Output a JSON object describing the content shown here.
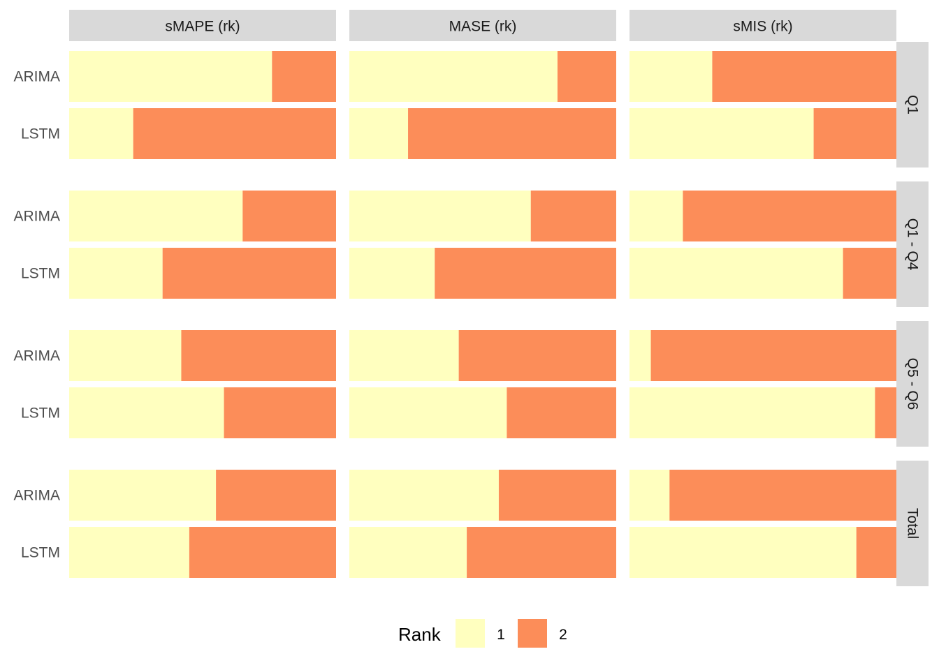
{
  "chart_data": {
    "type": "bar",
    "orientation": "horizontal",
    "stacked": true,
    "normalized": true,
    "title": "",
    "xlabel": "",
    "ylabel": "",
    "xlim": [
      0,
      1
    ],
    "grid": false,
    "legend": {
      "title": "Rank",
      "position": "bottom",
      "entries": [
        {
          "label": "1",
          "color": "#FFFFBF"
        },
        {
          "label": "2",
          "color": "#FC8D59"
        }
      ]
    },
    "columns": [
      "sMAPE (rk)",
      "MASE (rk)",
      "sMIS (rk)"
    ],
    "rows": [
      "Q1",
      "Q1 - Q4",
      "Q5 - Q6",
      "Total"
    ],
    "categories": [
      "ARIMA",
      "LSTM"
    ],
    "series": [
      {
        "name": "1",
        "color": "#FFFFBF"
      },
      {
        "name": "2",
        "color": "#FC8D59"
      }
    ],
    "panels": [
      {
        "row": "Q1",
        "column": "sMAPE (rk)",
        "values": [
          {
            "model": "ARIMA",
            "rank1": 0.76,
            "rank2": 0.24
          },
          {
            "model": "LSTM",
            "rank1": 0.24,
            "rank2": 0.76
          }
        ]
      },
      {
        "row": "Q1",
        "column": "MASE (rk)",
        "values": [
          {
            "model": "ARIMA",
            "rank1": 0.78,
            "rank2": 0.22
          },
          {
            "model": "LSTM",
            "rank1": 0.22,
            "rank2": 0.78
          }
        ]
      },
      {
        "row": "Q1",
        "column": "sMIS (rk)",
        "values": [
          {
            "model": "ARIMA",
            "rank1": 0.31,
            "rank2": 0.69
          },
          {
            "model": "LSTM",
            "rank1": 0.69,
            "rank2": 0.31
          }
        ]
      },
      {
        "row": "Q1 - Q4",
        "column": "sMAPE (rk)",
        "values": [
          {
            "model": "ARIMA",
            "rank1": 0.65,
            "rank2": 0.35
          },
          {
            "model": "LSTM",
            "rank1": 0.35,
            "rank2": 0.65
          }
        ]
      },
      {
        "row": "Q1 - Q4",
        "column": "MASE (rk)",
        "values": [
          {
            "model": "ARIMA",
            "rank1": 0.68,
            "rank2": 0.32
          },
          {
            "model": "LSTM",
            "rank1": 0.32,
            "rank2": 0.68
          }
        ]
      },
      {
        "row": "Q1 - Q4",
        "column": "sMIS (rk)",
        "values": [
          {
            "model": "ARIMA",
            "rank1": 0.2,
            "rank2": 0.8
          },
          {
            "model": "LSTM",
            "rank1": 0.8,
            "rank2": 0.2
          }
        ]
      },
      {
        "row": "Q5 - Q6",
        "column": "sMAPE (rk)",
        "values": [
          {
            "model": "ARIMA",
            "rank1": 0.42,
            "rank2": 0.58
          },
          {
            "model": "LSTM",
            "rank1": 0.58,
            "rank2": 0.42
          }
        ]
      },
      {
        "row": "Q5 - Q6",
        "column": "MASE (rk)",
        "values": [
          {
            "model": "ARIMA",
            "rank1": 0.41,
            "rank2": 0.59
          },
          {
            "model": "LSTM",
            "rank1": 0.59,
            "rank2": 0.41
          }
        ]
      },
      {
        "row": "Q5 - Q6",
        "column": "sMIS (rk)",
        "values": [
          {
            "model": "ARIMA",
            "rank1": 0.08,
            "rank2": 0.92
          },
          {
            "model": "LSTM",
            "rank1": 0.92,
            "rank2": 0.08
          }
        ]
      },
      {
        "row": "Total",
        "column": "sMAPE (rk)",
        "values": [
          {
            "model": "ARIMA",
            "rank1": 0.55,
            "rank2": 0.45
          },
          {
            "model": "LSTM",
            "rank1": 0.45,
            "rank2": 0.55
          }
        ]
      },
      {
        "row": "Total",
        "column": "MASE (rk)",
        "values": [
          {
            "model": "ARIMA",
            "rank1": 0.56,
            "rank2": 0.44
          },
          {
            "model": "LSTM",
            "rank1": 0.44,
            "rank2": 0.56
          }
        ]
      },
      {
        "row": "Total",
        "column": "sMIS (rk)",
        "values": [
          {
            "model": "ARIMA",
            "rank1": 0.15,
            "rank2": 0.85
          },
          {
            "model": "LSTM",
            "rank1": 0.85,
            "rank2": 0.15
          }
        ]
      }
    ]
  },
  "colors": {
    "strip_background": "#D9D9D9",
    "strip_text": "#1A1A1A",
    "axis_text": "#4D4D4D",
    "background": "#FFFFFF"
  }
}
